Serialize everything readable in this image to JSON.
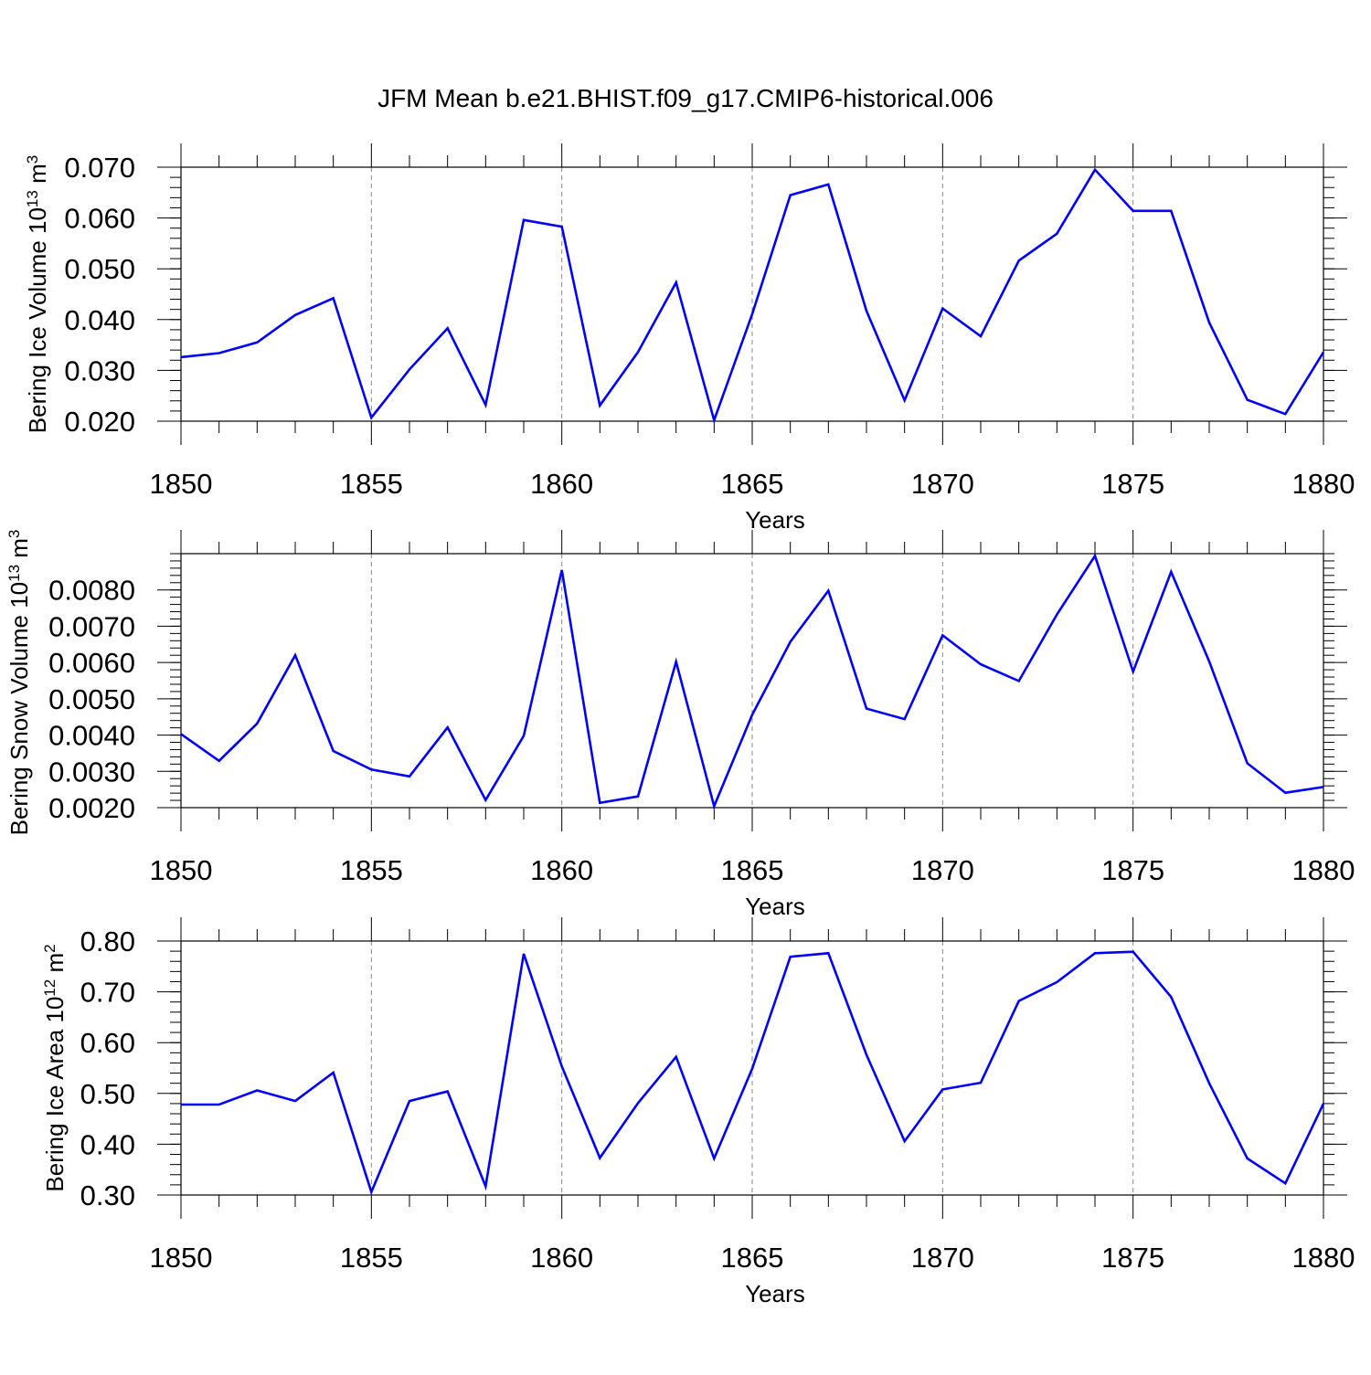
{
  "figure_title": "JFM Mean b.e21.BHIST.f09_g17.CMIP6-historical.006",
  "colors": {
    "line": "#0000ff",
    "axis": "#000000",
    "grid": "#888888"
  },
  "chart_data": [
    {
      "type": "line",
      "name": "ice-volume",
      "ylabel": {
        "main": "Bering Ice Volume 10",
        "sup": "13",
        "unit": " m",
        "unitSup": "3"
      },
      "xlabel": "Years",
      "xlim": [
        1850,
        1880
      ],
      "ylim": [
        0.02,
        0.07
      ],
      "xticks": [
        1850,
        1855,
        1860,
        1865,
        1870,
        1875,
        1880
      ],
      "xtick_labels": [
        "1850",
        "1855",
        "1860",
        "1865",
        "1870",
        "1875",
        "1880"
      ],
      "yticks": [
        0.02,
        0.03,
        0.04,
        0.05,
        0.06,
        0.07
      ],
      "ytick_labels": [
        "0.020",
        "0.030",
        "0.040",
        "0.050",
        "0.060",
        "0.070"
      ],
      "ytick_minor_step": 0.002,
      "grid": "vertical-dashed",
      "x": [
        1850,
        1851,
        1852,
        1853,
        1854,
        1855,
        1856,
        1857,
        1858,
        1859,
        1860,
        1861,
        1862,
        1863,
        1864,
        1865,
        1866,
        1867,
        1868,
        1869,
        1870,
        1871,
        1872,
        1873,
        1874,
        1875,
        1876,
        1877,
        1878,
        1879,
        1880
      ],
      "y": [
        0.0326,
        0.0334,
        0.0355,
        0.0409,
        0.0442,
        0.0207,
        0.0302,
        0.0383,
        0.0232,
        0.0596,
        0.0583,
        0.0231,
        0.0336,
        0.0473,
        0.0202,
        0.0411,
        0.0645,
        0.0666,
        0.0417,
        0.0241,
        0.0422,
        0.0367,
        0.0516,
        0.0569,
        0.0695,
        0.0614,
        0.0614,
        0.0394,
        0.0242,
        0.0214,
        0.0336
      ]
    },
    {
      "type": "line",
      "name": "snow-volume",
      "ylabel": {
        "main": "Bering Snow Volume 10",
        "sup": "13",
        "unit": " m",
        "unitSup": "3"
      },
      "xlabel": "Years",
      "xlim": [
        1850,
        1880
      ],
      "ylim": [
        0.002,
        0.009
      ],
      "xticks": [
        1850,
        1855,
        1860,
        1865,
        1870,
        1875,
        1880
      ],
      "xtick_labels": [
        "1850",
        "1855",
        "1860",
        "1865",
        "1870",
        "1875",
        "1880"
      ],
      "yticks": [
        0.002,
        0.003,
        0.004,
        0.005,
        0.006,
        0.007,
        0.008
      ],
      "ytick_labels": [
        "0.0020",
        "0.0030",
        "0.0040",
        "0.0050",
        "0.0060",
        "0.0070",
        "0.0080"
      ],
      "ytick_minor_step": 0.0002,
      "grid": "vertical-dashed",
      "x": [
        1850,
        1851,
        1852,
        1853,
        1854,
        1855,
        1856,
        1857,
        1858,
        1859,
        1860,
        1861,
        1862,
        1863,
        1864,
        1865,
        1866,
        1867,
        1868,
        1869,
        1870,
        1871,
        1872,
        1873,
        1874,
        1875,
        1876,
        1877,
        1878,
        1879,
        1880
      ],
      "y": [
        0.00403,
        0.00329,
        0.00432,
        0.0062,
        0.00356,
        0.00305,
        0.00286,
        0.00421,
        0.00221,
        0.00398,
        0.00855,
        0.00213,
        0.00231,
        0.00602,
        0.00204,
        0.00456,
        0.00657,
        0.00798,
        0.00473,
        0.00444,
        0.00675,
        0.00595,
        0.00549,
        0.00732,
        0.00894,
        0.00575,
        0.0085,
        0.00603,
        0.00322,
        0.00241,
        0.00257
      ]
    },
    {
      "type": "line",
      "name": "ice-area",
      "ylabel": {
        "main": "Bering Ice Area 10",
        "sup": "12",
        "unit": " m",
        "unitSup": "2"
      },
      "xlabel": "Years",
      "xlim": [
        1850,
        1880
      ],
      "ylim": [
        0.3,
        0.8
      ],
      "xticks": [
        1850,
        1855,
        1860,
        1865,
        1870,
        1875,
        1880
      ],
      "xtick_labels": [
        "1850",
        "1855",
        "1860",
        "1865",
        "1870",
        "1875",
        "1880"
      ],
      "yticks": [
        0.3,
        0.4,
        0.5,
        0.6,
        0.7,
        0.8
      ],
      "ytick_labels": [
        "0.30",
        "0.40",
        "0.50",
        "0.60",
        "0.70",
        "0.80"
      ],
      "ytick_minor_step": 0.02,
      "grid": "vertical-dashed",
      "x": [
        1850,
        1851,
        1852,
        1853,
        1854,
        1855,
        1856,
        1857,
        1858,
        1859,
        1860,
        1861,
        1862,
        1863,
        1864,
        1865,
        1866,
        1867,
        1868,
        1869,
        1870,
        1871,
        1872,
        1873,
        1874,
        1875,
        1876,
        1877,
        1878,
        1879,
        1880
      ],
      "y": [
        0.478,
        0.478,
        0.506,
        0.485,
        0.541,
        0.306,
        0.485,
        0.504,
        0.317,
        0.775,
        0.553,
        0.373,
        0.481,
        0.572,
        0.372,
        0.549,
        0.769,
        0.776,
        0.576,
        0.406,
        0.508,
        0.521,
        0.682,
        0.719,
        0.776,
        0.779,
        0.69,
        0.52,
        0.372,
        0.323,
        0.48
      ]
    }
  ]
}
